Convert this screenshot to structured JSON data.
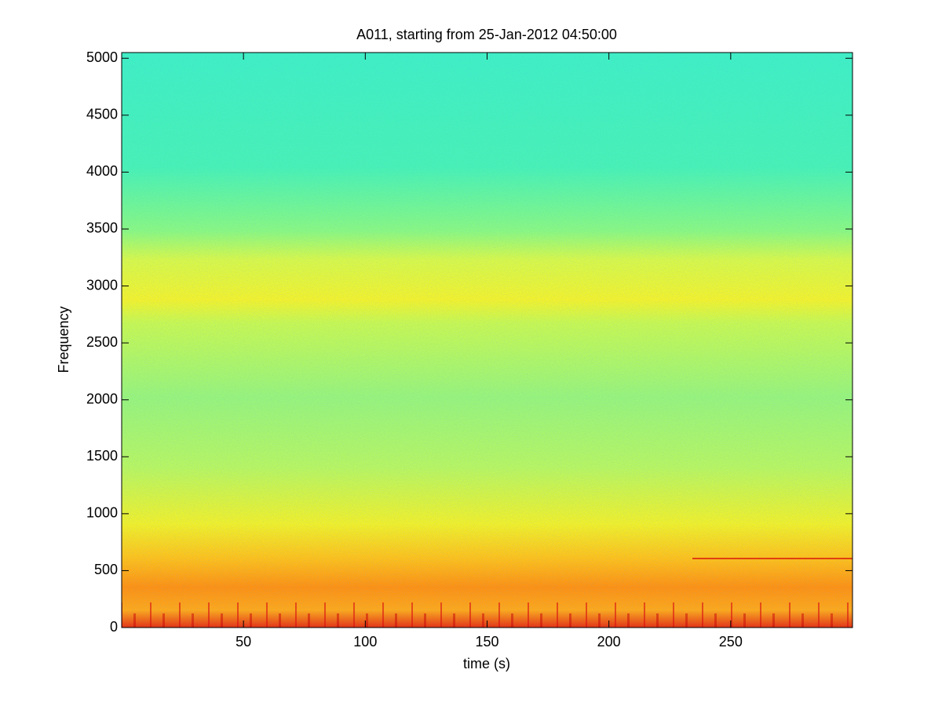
{
  "chart_data": {
    "type": "spectrogram",
    "title": "A011, starting from 25-Jan-2012 04:50:00",
    "x_label": "time (s)",
    "y_label": "Frequency",
    "xlim": [
      0,
      300
    ],
    "xticks": [
      50,
      100,
      150,
      200,
      250
    ],
    "ylim": [
      0,
      5050
    ],
    "yticks": [
      0,
      500,
      1000,
      1500,
      2000,
      2500,
      3000,
      3500,
      4000,
      4500,
      5000
    ]
  }
}
